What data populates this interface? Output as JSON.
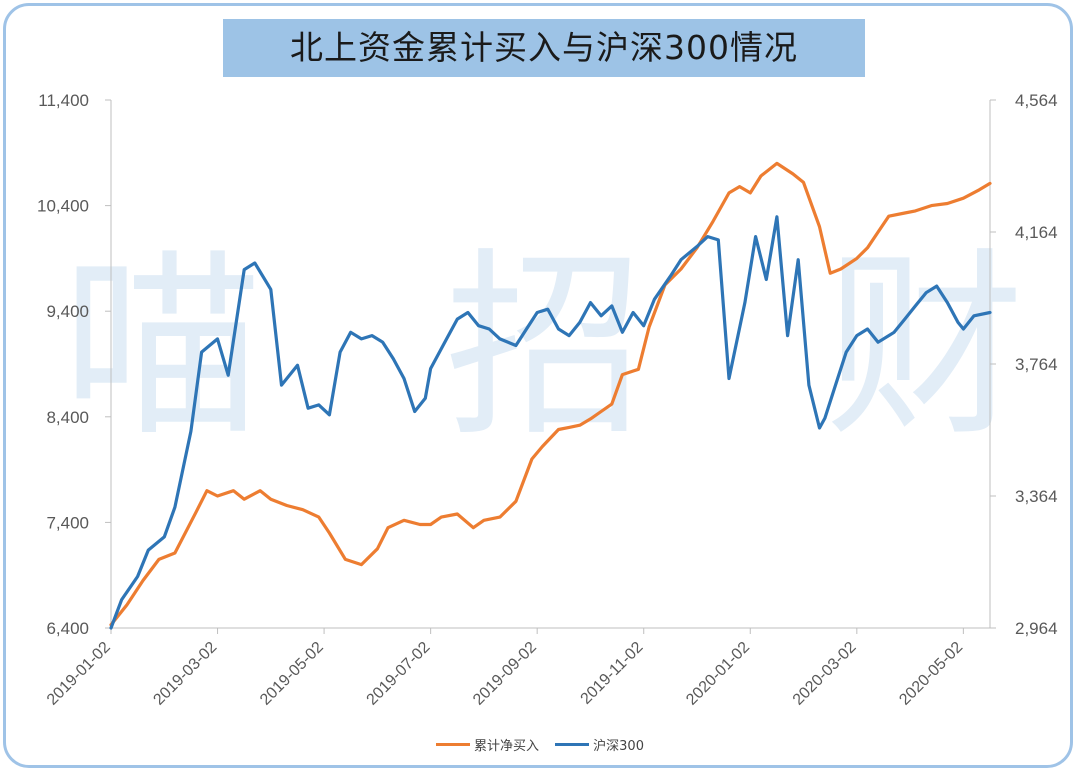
{
  "title": "北上资金累计买入与沪深300情况",
  "watermark": {
    "chars": [
      "喵",
      "招",
      "财"
    ]
  },
  "chart_data": {
    "type": "line",
    "title": "北上资金累计买入与沪深300情况",
    "x_tick_labels": [
      "2019-01-02",
      "2019-03-02",
      "2019-05-02",
      "2019-07-02",
      "2019-09-02",
      "2019-11-02",
      "2020-01-02",
      "2020-03-02",
      "2020-05-02"
    ],
    "x_range": [
      0,
      16.5
    ],
    "left_axis": {
      "ticks": [
        "6,400",
        "7,400",
        "8,400",
        "9,400",
        "10,400",
        "11,400"
      ],
      "range": [
        6400,
        11400
      ]
    },
    "right_axis": {
      "ticks": [
        "2,964",
        "3,364",
        "3,764",
        "4,164",
        "4,564"
      ],
      "range": [
        2964,
        4564
      ]
    },
    "series": [
      {
        "name": "累计净买入",
        "axis": "left",
        "color": "#ed7d31",
        "x": [
          0,
          0.3,
          0.6,
          0.9,
          1.2,
          1.6,
          1.8,
          2.0,
          2.3,
          2.5,
          2.8,
          3.0,
          3.3,
          3.6,
          3.9,
          4.1,
          4.4,
          4.7,
          5.0,
          5.2,
          5.5,
          5.8,
          6.0,
          6.2,
          6.5,
          6.8,
          7.0,
          7.3,
          7.6,
          7.9,
          8.1,
          8.4,
          8.6,
          8.8,
          9.0,
          9.2,
          9.4,
          9.6,
          9.9,
          10.1,
          10.4,
          10.7,
          11.0,
          11.3,
          11.6,
          11.8,
          12.0,
          12.2,
          12.5,
          12.8,
          13.0,
          13.3,
          13.5,
          13.7,
          14.0,
          14.2,
          14.4,
          14.6,
          14.9,
          15.1,
          15.4,
          15.7,
          16.0,
          16.3,
          16.5
        ],
        "values": [
          6430,
          6620,
          6850,
          7050,
          7110,
          7500,
          7700,
          7650,
          7700,
          7620,
          7700,
          7620,
          7560,
          7520,
          7450,
          7300,
          7050,
          7000,
          7150,
          7350,
          7420,
          7380,
          7380,
          7450,
          7480,
          7350,
          7420,
          7450,
          7600,
          8000,
          8120,
          8280,
          8300,
          8320,
          8380,
          8450,
          8520,
          8800,
          8850,
          9250,
          9650,
          9800,
          10000,
          10250,
          10520,
          10580,
          10520,
          10680,
          10800,
          10700,
          10620,
          10200,
          9760,
          9800,
          9900,
          10000,
          10150,
          10300,
          10330,
          10350,
          10400,
          10420,
          10470,
          10550,
          10610
        ]
      },
      {
        "name": "沪深300",
        "axis": "right",
        "color": "#2e75b6",
        "x": [
          0,
          0.2,
          0.5,
          0.7,
          1.0,
          1.2,
          1.5,
          1.7,
          2.0,
          2.2,
          2.5,
          2.7,
          3.0,
          3.2,
          3.5,
          3.7,
          3.9,
          4.1,
          4.3,
          4.5,
          4.7,
          4.9,
          5.1,
          5.3,
          5.5,
          5.7,
          5.9,
          6.0,
          6.3,
          6.5,
          6.7,
          6.9,
          7.1,
          7.3,
          7.6,
          7.8,
          8.0,
          8.2,
          8.4,
          8.6,
          8.8,
          9.0,
          9.2,
          9.4,
          9.6,
          9.8,
          10.0,
          10.2,
          10.5,
          10.7,
          11.0,
          11.2,
          11.4,
          11.6,
          11.9,
          12.1,
          12.3,
          12.5,
          12.7,
          12.9,
          13.1,
          13.3,
          13.4,
          13.6,
          13.8,
          14.0,
          14.2,
          14.4,
          14.7,
          14.9,
          15.1,
          15.3,
          15.5,
          15.7,
          15.9,
          16.0,
          16.2,
          16.5
        ],
        "values": [
          2964,
          3050,
          3120,
          3200,
          3240,
          3330,
          3560,
          3800,
          3840,
          3730,
          4050,
          4070,
          3990,
          3700,
          3760,
          3630,
          3640,
          3610,
          3800,
          3860,
          3840,
          3850,
          3830,
          3780,
          3720,
          3620,
          3660,
          3750,
          3840,
          3900,
          3920,
          3880,
          3870,
          3840,
          3820,
          3870,
          3920,
          3930,
          3870,
          3850,
          3890,
          3950,
          3910,
          3940,
          3860,
          3920,
          3880,
          3960,
          4030,
          4080,
          4120,
          4150,
          4140,
          3720,
          3950,
          4150,
          4020,
          4210,
          3850,
          4080,
          3700,
          3570,
          3600,
          3700,
          3800,
          3850,
          3870,
          3830,
          3860,
          3900,
          3940,
          3980,
          4000,
          3950,
          3890,
          3870,
          3910,
          3920
        ]
      }
    ],
    "legend_position": "bottom-center",
    "grid": false
  }
}
